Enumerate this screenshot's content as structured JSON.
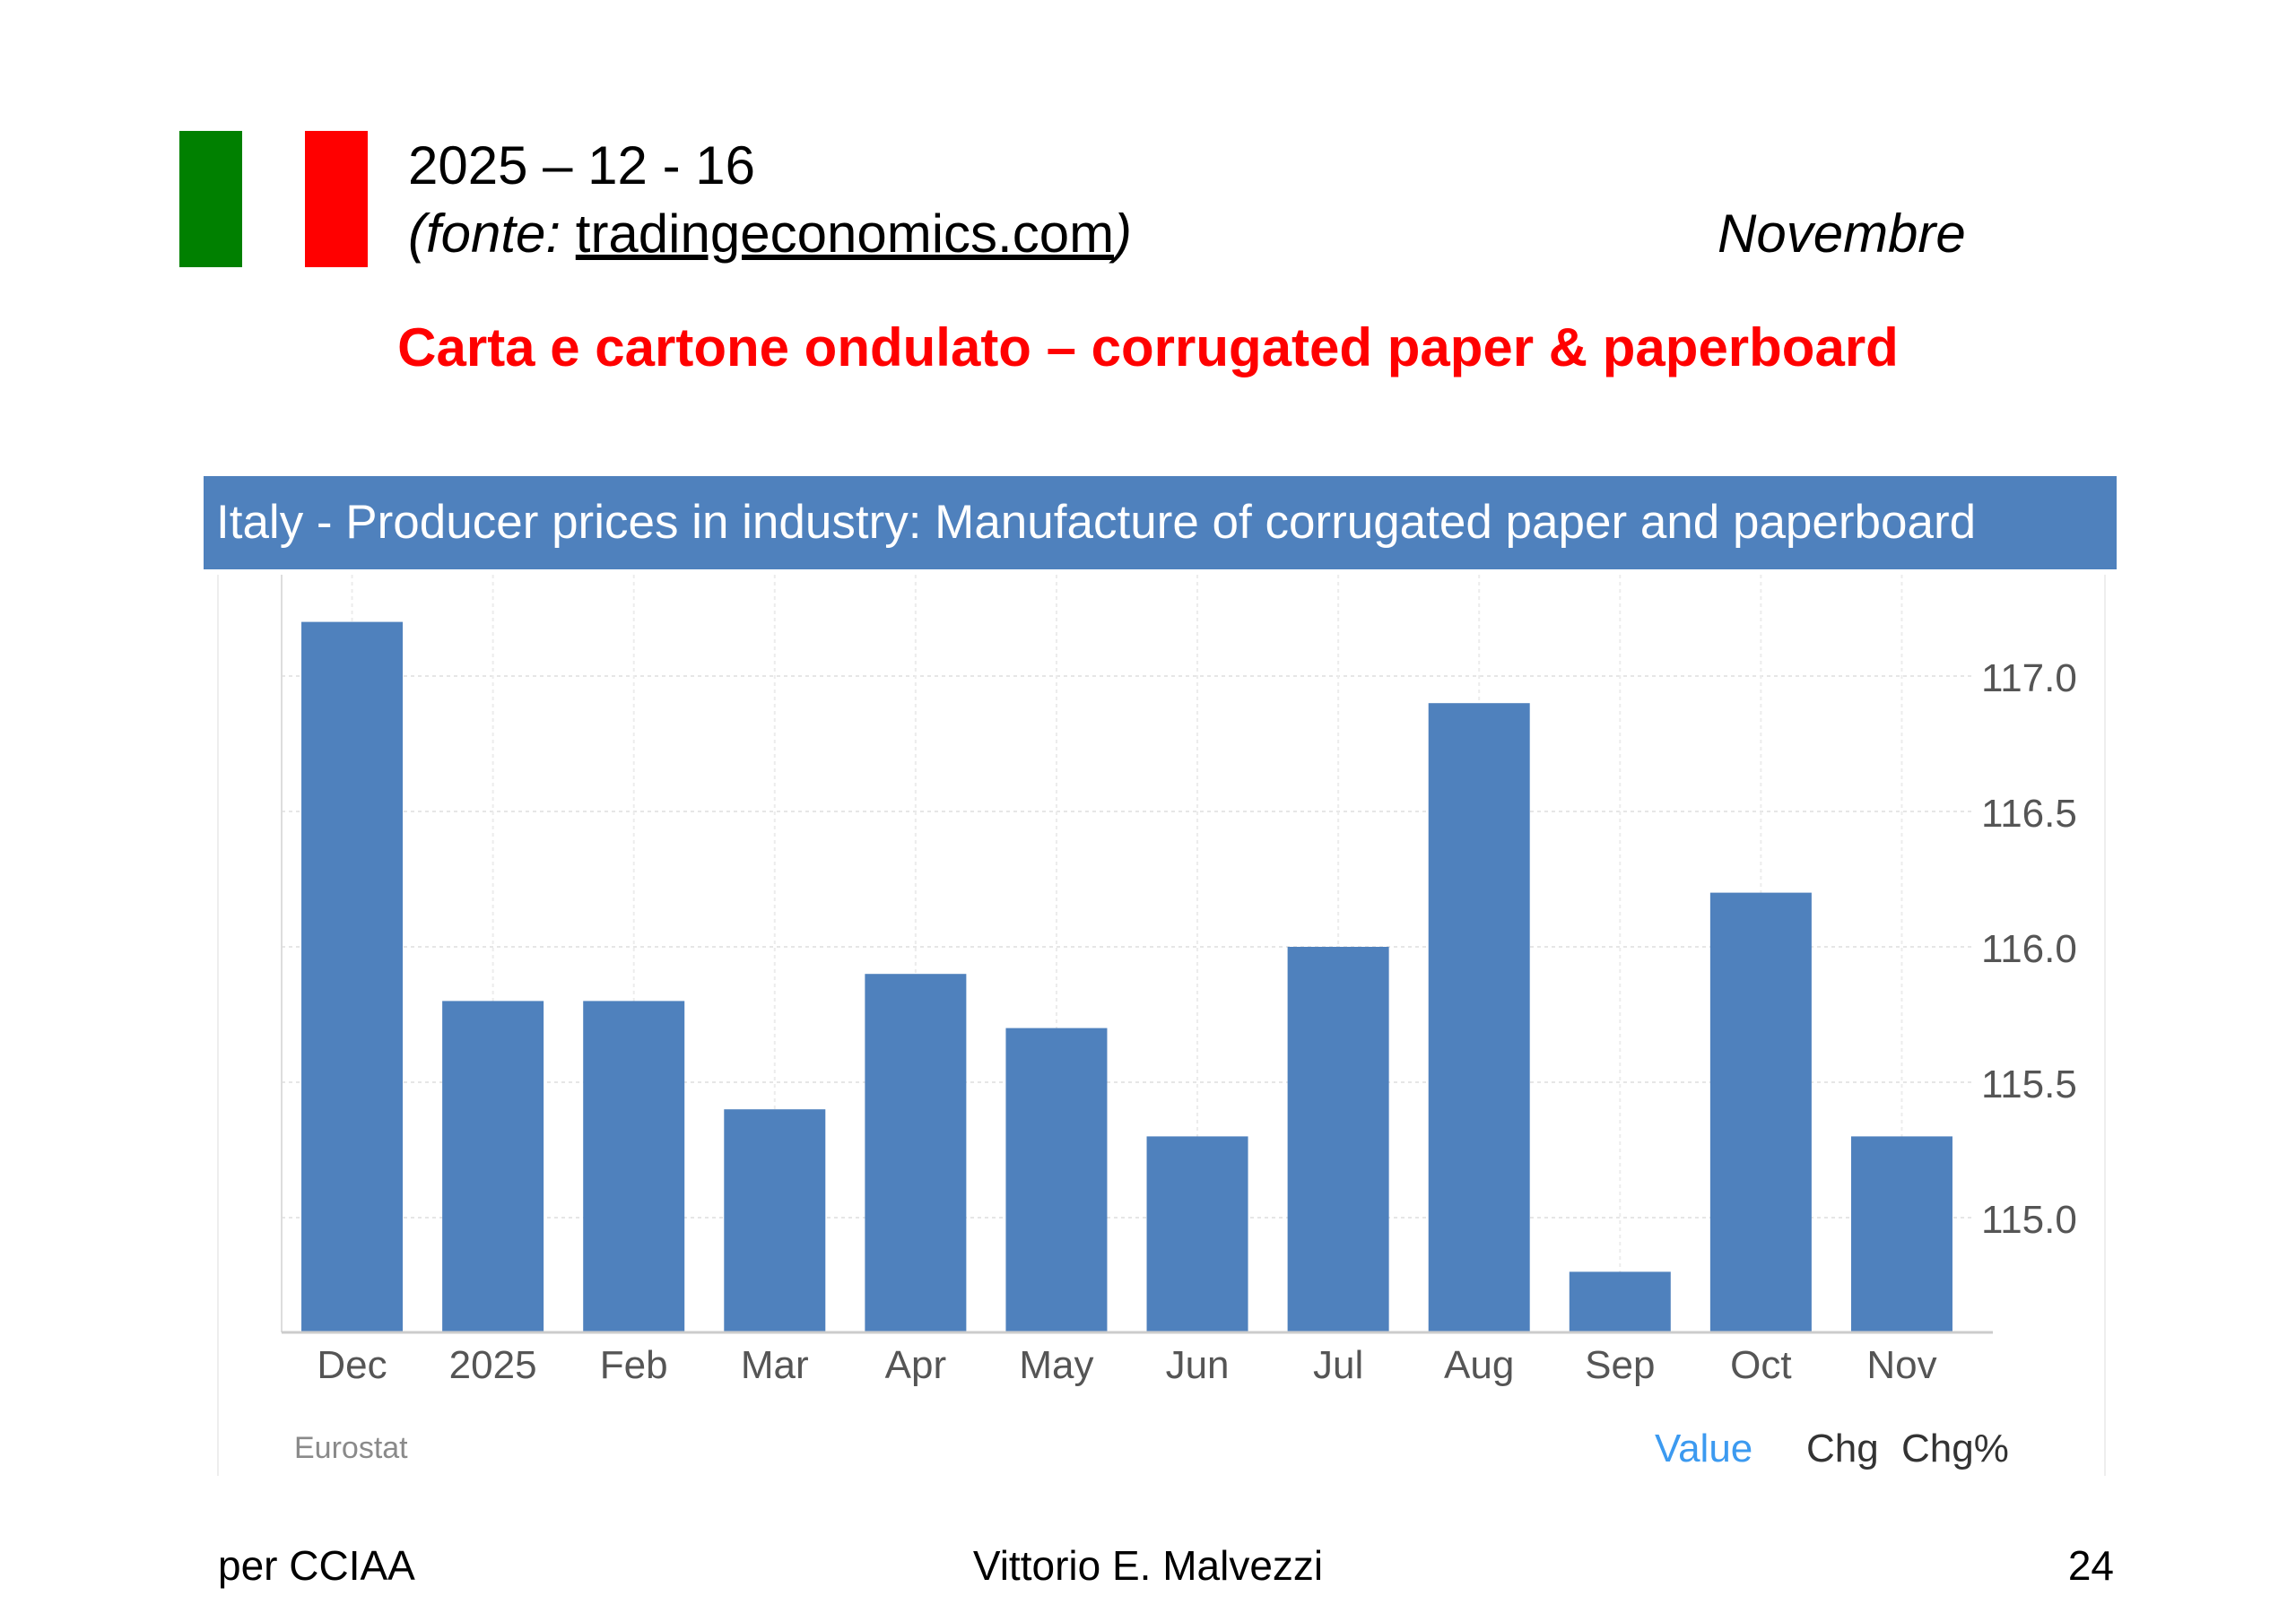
{
  "slide": {
    "date": "2025 – 12 - 16",
    "source_prefix": "(fonte: ",
    "source_link": "tradingeconomics.com",
    "source_suffix": ")",
    "month": "Novembre",
    "subtitle": "Carta e cartone ondulato – corrugated paper & paperboard",
    "flag_colors": {
      "green": "#008000",
      "white": "#ffffff",
      "red": "#ff0000"
    }
  },
  "chart_data": {
    "type": "bar",
    "title": "Italy - Producer prices in industry: Manufacture of corrugated paper and paperboard",
    "categories": [
      "Dec",
      "2025",
      "Feb",
      "Mar",
      "Apr",
      "May",
      "Jun",
      "Jul",
      "Aug",
      "Sep",
      "Oct",
      "Nov"
    ],
    "values": [
      117.2,
      115.8,
      115.8,
      115.4,
      115.9,
      115.7,
      115.3,
      116.0,
      116.9,
      114.8,
      116.2,
      115.3
    ],
    "ylim": [
      114.6,
      117.3
    ],
    "yticks": [
      "117.0",
      "116.5",
      "116.0",
      "115.5",
      "115.0"
    ],
    "ytick_values": [
      117.0,
      116.5,
      116.0,
      115.5,
      115.0
    ],
    "y_axis_side": "right",
    "grid": true,
    "source": "Eurostat",
    "bar_color": "#4f81bd",
    "header_color": "#4f81bd",
    "tabs": [
      {
        "label": "Value",
        "active": true
      },
      {
        "label": "Chg",
        "active": false
      },
      {
        "label": "Chg%",
        "active": false
      }
    ]
  },
  "footer": {
    "left": "per CCIAA",
    "center": "Vittorio E. Malvezzi",
    "page": "24"
  }
}
